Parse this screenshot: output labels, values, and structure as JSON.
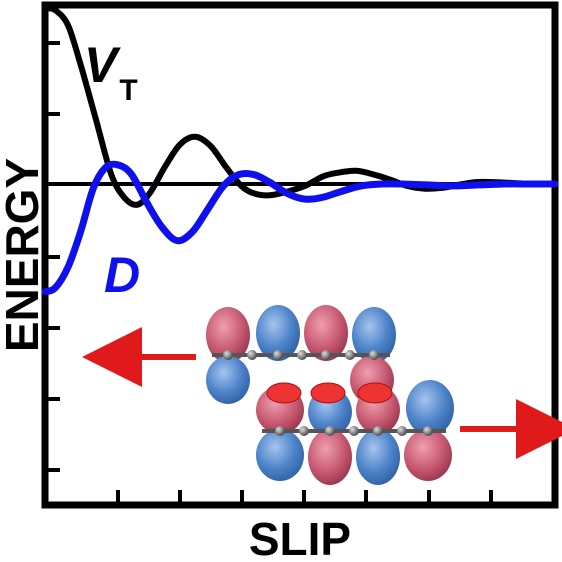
{
  "chart_data": {
    "type": "line",
    "xlabel": "SLIP",
    "ylabel": "ENERGY",
    "xlim": [
      0,
      1
    ],
    "ylim": [
      -1.0,
      1.0
    ],
    "grid": false,
    "series": [
      {
        "name": "V",
        "name_subscript": "T",
        "color": "#000000",
        "points": [
          [
            0.0,
            0.93
          ],
          [
            0.02,
            0.92
          ],
          [
            0.045,
            0.84
          ],
          [
            0.07,
            0.63
          ],
          [
            0.1,
            0.34
          ],
          [
            0.13,
            0.05
          ],
          [
            0.155,
            -0.07
          ],
          [
            0.18,
            -0.11
          ],
          [
            0.205,
            -0.05
          ],
          [
            0.235,
            0.09
          ],
          [
            0.265,
            0.21
          ],
          [
            0.295,
            0.25
          ],
          [
            0.325,
            0.2
          ],
          [
            0.355,
            0.09
          ],
          [
            0.385,
            -0.01
          ],
          [
            0.41,
            -0.05
          ],
          [
            0.44,
            -0.06
          ],
          [
            0.475,
            -0.04
          ],
          [
            0.51,
            -0.01
          ],
          [
            0.545,
            0.04
          ],
          [
            0.575,
            0.06
          ],
          [
            0.61,
            0.07
          ],
          [
            0.645,
            0.05
          ],
          [
            0.68,
            0.02
          ],
          [
            0.71,
            -0.01
          ],
          [
            0.745,
            -0.025
          ],
          [
            0.78,
            -0.02
          ],
          [
            0.81,
            -0.005
          ],
          [
            0.845,
            0.01
          ],
          [
            0.88,
            0.01
          ],
          [
            0.92,
            0.005
          ],
          [
            0.96,
            0.0
          ],
          [
            1.0,
            0.0
          ]
        ]
      },
      {
        "name": "D",
        "color": "#1010ee",
        "points": [
          [
            0.0,
            -0.57
          ],
          [
            0.02,
            -0.55
          ],
          [
            0.045,
            -0.44
          ],
          [
            0.07,
            -0.25
          ],
          [
            0.095,
            -0.02
          ],
          [
            0.12,
            0.09
          ],
          [
            0.145,
            0.1
          ],
          [
            0.17,
            0.05
          ],
          [
            0.2,
            -0.1
          ],
          [
            0.23,
            -0.23
          ],
          [
            0.26,
            -0.3
          ],
          [
            0.29,
            -0.25
          ],
          [
            0.32,
            -0.13
          ],
          [
            0.35,
            -0.01
          ],
          [
            0.38,
            0.05
          ],
          [
            0.41,
            0.05
          ],
          [
            0.44,
            0.01
          ],
          [
            0.475,
            -0.05
          ],
          [
            0.51,
            -0.08
          ],
          [
            0.545,
            -0.07
          ],
          [
            0.58,
            -0.04
          ],
          [
            0.62,
            -0.01
          ],
          [
            0.66,
            0.0
          ],
          [
            0.7,
            0.0
          ],
          [
            0.75,
            -0.005
          ],
          [
            0.8,
            -0.01
          ],
          [
            0.85,
            -0.005
          ],
          [
            0.9,
            0.0
          ],
          [
            0.95,
            0.0
          ],
          [
            1.0,
            0.0
          ]
        ]
      }
    ]
  }
}
